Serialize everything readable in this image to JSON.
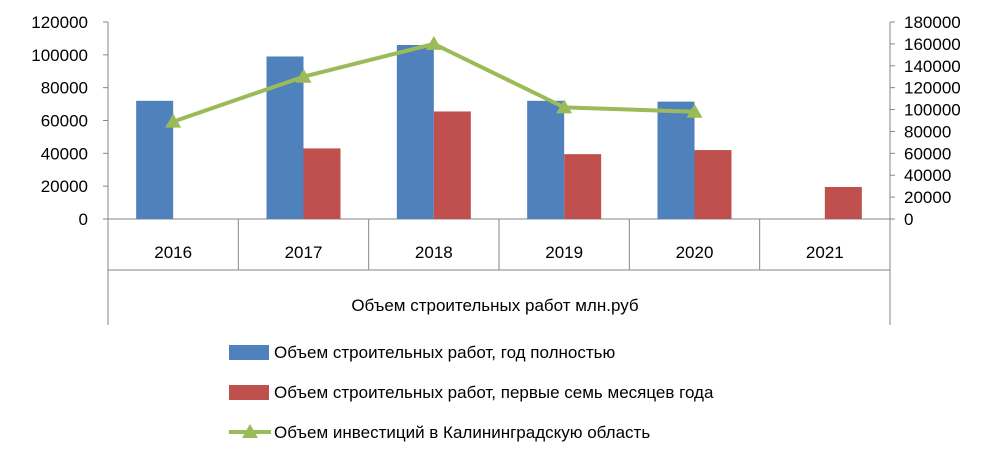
{
  "chart_data": {
    "type": "bar",
    "categories": [
      "2016",
      "2017",
      "2018",
      "2019",
      "2020",
      "2021"
    ],
    "xlabel": "Объем строительных работ млн.руб",
    "y_left": {
      "ticks": [
        "0",
        "20000",
        "40000",
        "60000",
        "80000",
        "100000",
        "120000"
      ],
      "ylim": [
        0,
        120000
      ]
    },
    "y_right": {
      "ticks": [
        "0",
        "20000",
        "40000",
        "60000",
        "80000",
        "100000",
        "120000",
        "140000",
        "160000",
        "180000"
      ],
      "ylim": [
        0,
        180000
      ]
    },
    "series": [
      {
        "name": "Объем строительных работ, год полностью",
        "type": "bar",
        "axis": "left",
        "color": "#4F81BD",
        "values": [
          72000,
          99000,
          106000,
          72000,
          71500,
          null
        ]
      },
      {
        "name": "Объем строительных работ, первые семь месяцев года",
        "type": "bar",
        "axis": "left",
        "color": "#C0504D",
        "values": [
          null,
          43000,
          65500,
          39500,
          42000,
          19500
        ]
      },
      {
        "name": "Объем инвестиций в Калининградскую область",
        "type": "line",
        "axis": "right",
        "color": "#9BBB59",
        "marker": "triangle",
        "values": [
          89000,
          130000,
          160000,
          102000,
          98000,
          null
        ]
      }
    ],
    "legend_position": "bottom",
    "grid": false
  }
}
